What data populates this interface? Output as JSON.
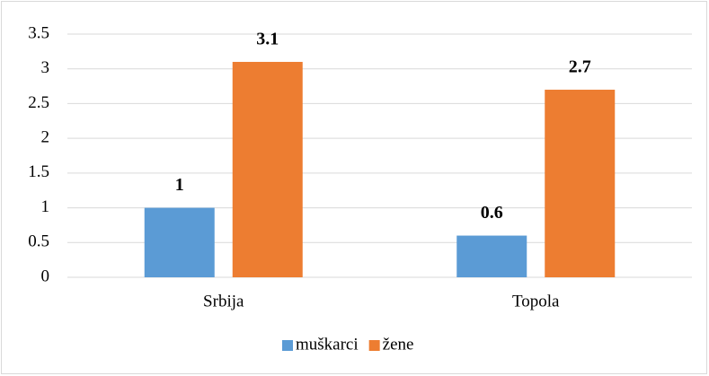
{
  "chart_data": {
    "type": "bar",
    "categories": [
      "Srbija",
      "Topola"
    ],
    "series": [
      {
        "name": "muškarci",
        "color": "#5b9bd5",
        "values": [
          1,
          0.6
        ]
      },
      {
        "name": "žene",
        "color": "#ed7d31",
        "values": [
          3.1,
          2.7
        ]
      }
    ],
    "ylim": [
      0,
      3.5
    ],
    "yticks": [
      0,
      0.5,
      1,
      1.5,
      2,
      2.5,
      3,
      3.5
    ],
    "grid": true,
    "legend": "bottom"
  }
}
